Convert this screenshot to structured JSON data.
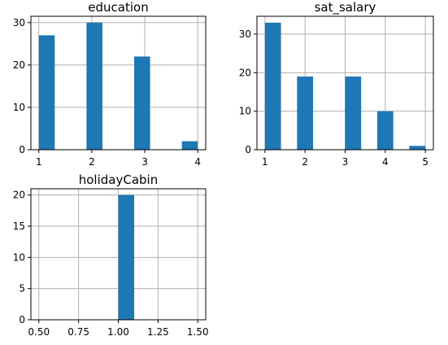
{
  "chart_data": [
    {
      "type": "bar",
      "title": "education",
      "bar_color": "#1f77b4",
      "grid": true,
      "xlim": [
        0.85,
        4.15
      ],
      "ylim": [
        0,
        31.5
      ],
      "xticks": [
        1,
        2,
        3,
        4
      ],
      "xtick_labels": [
        "1",
        "2",
        "3",
        "4"
      ],
      "yticks": [
        0,
        10,
        20,
        30
      ],
      "ytick_labels": [
        "0",
        "10",
        "20",
        "30"
      ],
      "bins": [
        {
          "x0": 1.0,
          "x1": 1.3,
          "count": 27
        },
        {
          "x0": 1.3,
          "x1": 1.6,
          "count": 0
        },
        {
          "x0": 1.6,
          "x1": 1.9,
          "count": 0
        },
        {
          "x0": 1.9,
          "x1": 2.2,
          "count": 30
        },
        {
          "x0": 2.2,
          "x1": 2.5,
          "count": 0
        },
        {
          "x0": 2.5,
          "x1": 2.8,
          "count": 0
        },
        {
          "x0": 2.8,
          "x1": 3.1,
          "count": 22
        },
        {
          "x0": 3.1,
          "x1": 3.4,
          "count": 0
        },
        {
          "x0": 3.4,
          "x1": 3.7,
          "count": 0
        },
        {
          "x0": 3.7,
          "x1": 4.0,
          "count": 2
        }
      ]
    },
    {
      "type": "bar",
      "title": "sat_salary",
      "bar_color": "#1f77b4",
      "grid": true,
      "xlim": [
        0.8,
        5.2
      ],
      "ylim": [
        0,
        34.65
      ],
      "xticks": [
        1,
        2,
        3,
        4,
        5
      ],
      "xtick_labels": [
        "1",
        "2",
        "3",
        "4",
        "5"
      ],
      "yticks": [
        0,
        10,
        20,
        30
      ],
      "ytick_labels": [
        "0",
        "10",
        "20",
        "30"
      ],
      "bins": [
        {
          "x0": 1.0,
          "x1": 1.4,
          "count": 33
        },
        {
          "x0": 1.4,
          "x1": 1.8,
          "count": 0
        },
        {
          "x0": 1.8,
          "x1": 2.2,
          "count": 19
        },
        {
          "x0": 2.2,
          "x1": 2.6,
          "count": 0
        },
        {
          "x0": 2.6,
          "x1": 3.0,
          "count": 0
        },
        {
          "x0": 3.0,
          "x1": 3.4,
          "count": 19
        },
        {
          "x0": 3.4,
          "x1": 3.8,
          "count": 0
        },
        {
          "x0": 3.8,
          "x1": 4.2,
          "count": 10
        },
        {
          "x0": 4.2,
          "x1": 4.6,
          "count": 0
        },
        {
          "x0": 4.6,
          "x1": 5.0,
          "count": 1
        }
      ]
    },
    {
      "type": "bar",
      "title": "holidayCabin",
      "bar_color": "#1f77b4",
      "grid": true,
      "xlim": [
        0.45,
        1.55
      ],
      "ylim": [
        0,
        21
      ],
      "xticks": [
        0.5,
        0.75,
        1.0,
        1.25,
        1.5
      ],
      "xtick_labels": [
        "0.50",
        "0.75",
        "1.00",
        "1.25",
        "1.50"
      ],
      "yticks": [
        0,
        5,
        10,
        15,
        20
      ],
      "ytick_labels": [
        "0",
        "5",
        "10",
        "15",
        "20"
      ],
      "bins": [
        {
          "x0": 0.5,
          "x1": 0.6,
          "count": 0
        },
        {
          "x0": 0.6,
          "x1": 0.7,
          "count": 0
        },
        {
          "x0": 0.7,
          "x1": 0.8,
          "count": 0
        },
        {
          "x0": 0.8,
          "x1": 0.9,
          "count": 0
        },
        {
          "x0": 0.9,
          "x1": 1.0,
          "count": 0
        },
        {
          "x0": 1.0,
          "x1": 1.1,
          "count": 20
        },
        {
          "x0": 1.1,
          "x1": 1.2,
          "count": 0
        },
        {
          "x0": 1.2,
          "x1": 1.3,
          "count": 0
        },
        {
          "x0": 1.3,
          "x1": 1.4,
          "count": 0
        },
        {
          "x0": 1.4,
          "x1": 1.5,
          "count": 0
        }
      ]
    }
  ]
}
